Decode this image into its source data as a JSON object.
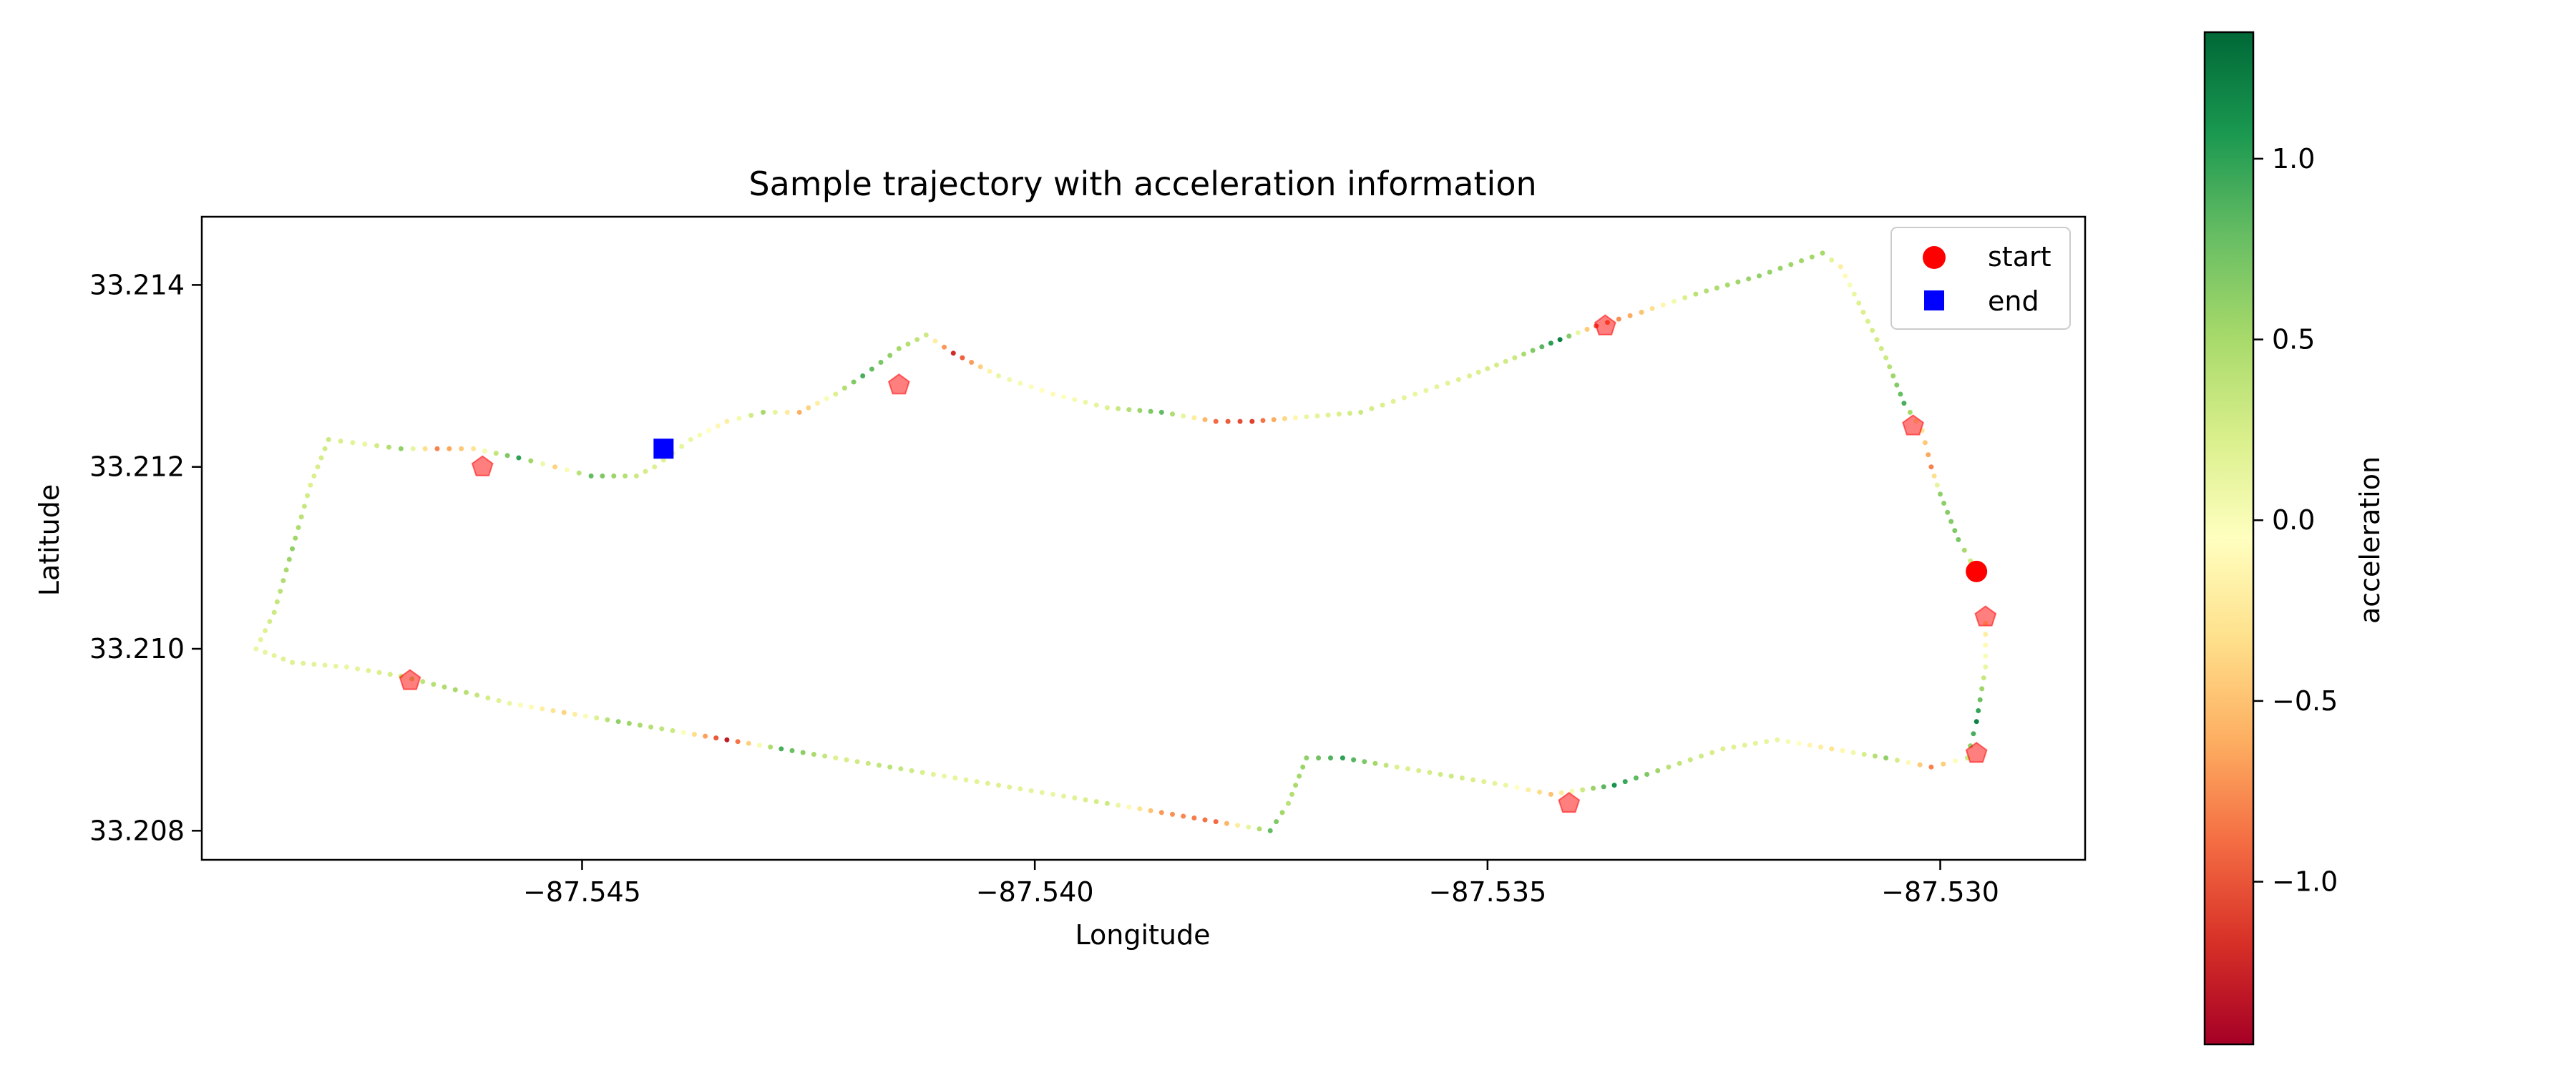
{
  "chart_data": {
    "type": "scatter",
    "title": "Sample trajectory with acceleration information",
    "xlabel": "Longitude",
    "ylabel": "Latitude",
    "xlim": [
      -87.5492,
      -87.5284
    ],
    "ylim": [
      33.20768,
      33.21475
    ],
    "xticks": [
      -87.545,
      -87.54,
      -87.535,
      -87.53
    ],
    "xtick_labels": [
      "−87.545",
      "−87.540",
      "−87.535",
      "−87.530"
    ],
    "yticks": [
      33.208,
      33.21,
      33.212,
      33.214
    ],
    "ytick_labels": [
      "33.208",
      "33.210",
      "33.212",
      "33.214"
    ],
    "grid": false,
    "legend_position": "top-right",
    "legend": [
      {
        "label": "start",
        "marker": "circle",
        "color": "#ff0000"
      },
      {
        "label": "end",
        "marker": "square",
        "color": "#0000ff"
      }
    ],
    "colorbar": {
      "label": "acceleration",
      "colormap": "RdYlGn",
      "range": [
        -1.45,
        1.35
      ],
      "ticks": [
        1.0,
        0.5,
        0.0,
        -0.5,
        -1.0
      ],
      "tick_labels": [
        "1.0",
        "0.5",
        "0.0",
        "−0.5",
        "−1.0"
      ],
      "colors": [
        "#a50026",
        "#d73027",
        "#f46d43",
        "#fdae61",
        "#fee08b",
        "#ffffbf",
        "#d9ef8b",
        "#a6d96a",
        "#66bd63",
        "#1a9850",
        "#006837"
      ]
    },
    "start": {
      "lon": -87.5296,
      "lat": 33.21085
    },
    "end": {
      "lon": -87.5441,
      "lat": 33.2122
    },
    "events": [
      {
        "lon": -87.5469,
        "lat": 33.20965
      },
      {
        "lon": -87.5461,
        "lat": 33.212
      },
      {
        "lon": -87.5415,
        "lat": 33.2129
      },
      {
        "lon": -87.5337,
        "lat": 33.21355
      },
      {
        "lon": -87.5303,
        "lat": 33.21245
      },
      {
        "lon": -87.5295,
        "lat": 33.21035
      },
      {
        "lon": -87.5296,
        "lat": 33.20885
      },
      {
        "lon": -87.5341,
        "lat": 33.2083
      }
    ],
    "trajectory": [
      {
        "lon": -87.5296,
        "lat": 33.21085,
        "acc": 0.1
      },
      {
        "lon": -87.5298,
        "lat": 33.2112,
        "acc": 0.7
      },
      {
        "lon": -87.53,
        "lat": 33.2117,
        "acc": 0.6
      },
      {
        "lon": -87.5301,
        "lat": 33.212,
        "acc": -0.8
      },
      {
        "lon": -87.5302,
        "lat": 33.2124,
        "acc": -0.3
      },
      {
        "lon": -87.5304,
        "lat": 33.2127,
        "acc": 0.9
      },
      {
        "lon": -87.5306,
        "lat": 33.2132,
        "acc": 0.3
      },
      {
        "lon": -87.5309,
        "lat": 33.2138,
        "acc": 0.2
      },
      {
        "lon": -87.5311,
        "lat": 33.2142,
        "acc": -0.2
      },
      {
        "lon": -87.5313,
        "lat": 33.21435,
        "acc": 0.5
      },
      {
        "lon": -87.532,
        "lat": 33.2141,
        "acc": 0.6
      },
      {
        "lon": -87.5327,
        "lat": 33.2139,
        "acc": 0.4
      },
      {
        "lon": -87.5333,
        "lat": 33.2137,
        "acc": -0.5
      },
      {
        "lon": -87.5338,
        "lat": 33.21355,
        "acc": -1.0
      },
      {
        "lon": -87.5342,
        "lat": 33.2134,
        "acc": 1.2
      },
      {
        "lon": -87.5347,
        "lat": 33.2132,
        "acc": 0.3
      },
      {
        "lon": -87.5352,
        "lat": 33.213,
        "acc": 0.2
      },
      {
        "lon": -87.5358,
        "lat": 33.2128,
        "acc": 0.1
      },
      {
        "lon": -87.5364,
        "lat": 33.2126,
        "acc": 0.3
      },
      {
        "lon": -87.537,
        "lat": 33.21255,
        "acc": 0.1
      },
      {
        "lon": -87.5376,
        "lat": 33.2125,
        "acc": -1.1
      },
      {
        "lon": -87.538,
        "lat": 33.2125,
        "acc": -0.9
      },
      {
        "lon": -87.5386,
        "lat": 33.2126,
        "acc": 0.8
      },
      {
        "lon": -87.5392,
        "lat": 33.21265,
        "acc": 0.2
      },
      {
        "lon": -87.5398,
        "lat": 33.2128,
        "acc": -0.1
      },
      {
        "lon": -87.5404,
        "lat": 33.213,
        "acc": 0.1
      },
      {
        "lon": -87.5409,
        "lat": 33.21325,
        "acc": -1.2
      },
      {
        "lon": -87.5412,
        "lat": 33.21345,
        "acc": 0.3
      },
      {
        "lon": -87.5415,
        "lat": 33.2133,
        "acc": 0.5
      },
      {
        "lon": -87.5419,
        "lat": 33.213,
        "acc": 0.9
      },
      {
        "lon": -87.5422,
        "lat": 33.2128,
        "acc": 0.2
      },
      {
        "lon": -87.5426,
        "lat": 33.2126,
        "acc": -0.6
      },
      {
        "lon": -87.543,
        "lat": 33.2126,
        "acc": 0.5
      },
      {
        "lon": -87.5434,
        "lat": 33.2125,
        "acc": -0.2
      },
      {
        "lon": -87.5438,
        "lat": 33.2123,
        "acc": 0.1
      },
      {
        "lon": -87.5442,
        "lat": 33.212,
        "acc": 0.2
      },
      {
        "lon": -87.5444,
        "lat": 33.2119,
        "acc": 0.3
      },
      {
        "lon": -87.5449,
        "lat": 33.2119,
        "acc": 0.8
      },
      {
        "lon": -87.5453,
        "lat": 33.212,
        "acc": -0.4
      },
      {
        "lon": -87.5457,
        "lat": 33.2121,
        "acc": 1.0
      },
      {
        "lon": -87.5462,
        "lat": 33.2122,
        "acc": -0.3
      },
      {
        "lon": -87.5466,
        "lat": 33.2122,
        "acc": -0.8
      },
      {
        "lon": -87.547,
        "lat": 33.2122,
        "acc": 0.6
      },
      {
        "lon": -87.5474,
        "lat": 33.21225,
        "acc": 0.1
      },
      {
        "lon": -87.5478,
        "lat": 33.2123,
        "acc": 0.3
      },
      {
        "lon": -87.548,
        "lat": 33.2118,
        "acc": 0.2
      },
      {
        "lon": -87.5482,
        "lat": 33.2111,
        "acc": 0.6
      },
      {
        "lon": -87.5484,
        "lat": 33.2104,
        "acc": 0.3
      },
      {
        "lon": -87.5486,
        "lat": 33.21,
        "acc": 0.1
      },
      {
        "lon": -87.5482,
        "lat": 33.20985,
        "acc": 0.2
      },
      {
        "lon": -87.5476,
        "lat": 33.2098,
        "acc": 0.1
      },
      {
        "lon": -87.547,
        "lat": 33.2097,
        "acc": 0.3
      },
      {
        "lon": -87.5464,
        "lat": 33.20955,
        "acc": 0.5
      },
      {
        "lon": -87.5458,
        "lat": 33.2094,
        "acc": 0.1
      },
      {
        "lon": -87.5452,
        "lat": 33.2093,
        "acc": -0.4
      },
      {
        "lon": -87.5446,
        "lat": 33.2092,
        "acc": 0.6
      },
      {
        "lon": -87.544,
        "lat": 33.2091,
        "acc": 0.3
      },
      {
        "lon": -87.5434,
        "lat": 33.209,
        "acc": -1.3
      },
      {
        "lon": -87.5428,
        "lat": 33.2089,
        "acc": 0.9
      },
      {
        "lon": -87.5422,
        "lat": 33.2088,
        "acc": 0.2
      },
      {
        "lon": -87.5416,
        "lat": 33.2087,
        "acc": 0.4
      },
      {
        "lon": -87.541,
        "lat": 33.2086,
        "acc": 0.1
      },
      {
        "lon": -87.5404,
        "lat": 33.2085,
        "acc": 0.2
      },
      {
        "lon": -87.5398,
        "lat": 33.2084,
        "acc": 0.1
      },
      {
        "lon": -87.5392,
        "lat": 33.2083,
        "acc": 0.3
      },
      {
        "lon": -87.5386,
        "lat": 33.2082,
        "acc": -0.7
      },
      {
        "lon": -87.538,
        "lat": 33.2081,
        "acc": -0.9
      },
      {
        "lon": -87.5374,
        "lat": 33.208,
        "acc": 0.8
      },
      {
        "lon": -87.5372,
        "lat": 33.2083,
        "acc": 0.4
      },
      {
        "lon": -87.537,
        "lat": 33.2088,
        "acc": 0.6
      },
      {
        "lon": -87.5366,
        "lat": 33.2088,
        "acc": 1.0
      },
      {
        "lon": -87.536,
        "lat": 33.2087,
        "acc": 0.2
      },
      {
        "lon": -87.5354,
        "lat": 33.2086,
        "acc": 0.3
      },
      {
        "lon": -87.5348,
        "lat": 33.2085,
        "acc": 0.1
      },
      {
        "lon": -87.5343,
        "lat": 33.2084,
        "acc": -0.5
      },
      {
        "lon": -87.5336,
        "lat": 33.2085,
        "acc": 1.1
      },
      {
        "lon": -87.533,
        "lat": 33.2087,
        "acc": 0.4
      },
      {
        "lon": -87.5324,
        "lat": 33.2089,
        "acc": 0.2
      },
      {
        "lon": -87.5318,
        "lat": 33.209,
        "acc": 0.1
      },
      {
        "lon": -87.5312,
        "lat": 33.2089,
        "acc": -0.3
      },
      {
        "lon": -87.5306,
        "lat": 33.2088,
        "acc": 0.6
      },
      {
        "lon": -87.5301,
        "lat": 33.2087,
        "acc": -0.8
      },
      {
        "lon": -87.5297,
        "lat": 33.2088,
        "acc": 0.3
      },
      {
        "lon": -87.5296,
        "lat": 33.2092,
        "acc": 1.2
      },
      {
        "lon": -87.5295,
        "lat": 33.2098,
        "acc": 0.1
      },
      {
        "lon": -87.5295,
        "lat": 33.2104,
        "acc": -0.4
      }
    ]
  }
}
